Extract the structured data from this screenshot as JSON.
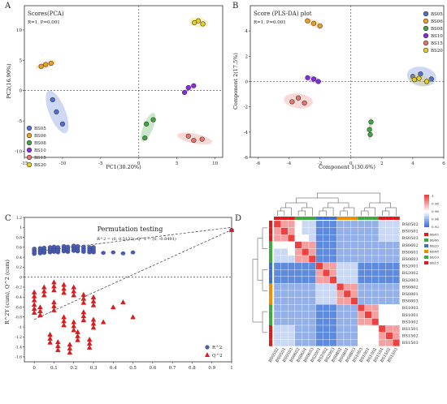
{
  "panels": {
    "A": {
      "letter": "A",
      "title": "Scores(PCA)",
      "stat": "R=1, P=0.001",
      "xlabel": "PC1(30.20%)",
      "ylabel": "PC2(16.90%)"
    },
    "B": {
      "letter": "B",
      "title": "Score (PLS-DA) plot",
      "stat": "R=1, P=0.001",
      "xlabel": "Component 1(30.6%)",
      "ylabel": "Component 2(17.5%)"
    },
    "C": {
      "letter": "C",
      "title": "Permutation testing",
      "stat1": "R^2 = (0, 0.5133), Q^2 = (0, -0.8491)",
      "ylabel": "R^2Y (cum), Q^2 (cum)"
    },
    "D": {
      "letter": "D"
    }
  },
  "colors": {
    "BS05": "#4f6fd6",
    "BS06": "#f0a020",
    "BS08": "#3fa83f",
    "BS10": "#8a2be2",
    "BS15": "#e8736b",
    "BS20": "#e8d020",
    "r2": "#4a5db0",
    "q2": "#e31a1c"
  },
  "chart_data": [
    {
      "panel": "A",
      "type": "scatter",
      "title": "Scores(PCA)",
      "subtitle": "R=1, P=0.001",
      "xlabel": "PC1(30.20%)",
      "ylabel": "PC2(16.90%)",
      "xlim": [
        -15,
        11
      ],
      "ylim": [
        -11,
        14
      ],
      "xticks": [
        -15,
        -10,
        -5,
        0,
        5,
        10
      ],
      "yticks": [
        -10,
        -5,
        0,
        5,
        10
      ],
      "legend": "bottom-left",
      "series": [
        {
          "name": "BS05",
          "points": [
            [
              -11.3,
              -1.5
            ],
            [
              -10.8,
              -3.5
            ],
            [
              -10.0,
              -5.5
            ]
          ]
        },
        {
          "name": "BS06",
          "points": [
            [
              -12.8,
              4.0
            ],
            [
              -12.2,
              4.3
            ],
            [
              -11.5,
              4.5
            ]
          ]
        },
        {
          "name": "BS08",
          "points": [
            [
              0.8,
              -7.8
            ],
            [
              1.0,
              -5.5
            ],
            [
              1.9,
              -4.8
            ]
          ]
        },
        {
          "name": "BS10",
          "points": [
            [
              6.0,
              -0.3
            ],
            [
              6.5,
              0.5
            ],
            [
              7.2,
              0.8
            ]
          ]
        },
        {
          "name": "BS15",
          "points": [
            [
              6.5,
              -7.5
            ],
            [
              7.2,
              -8.2
            ],
            [
              8.3,
              -8.0
            ]
          ]
        },
        {
          "name": "BS20",
          "points": [
            [
              7.3,
              11.2
            ],
            [
              7.8,
              11.5
            ],
            [
              8.4,
              11.0
            ]
          ]
        }
      ]
    },
    {
      "panel": "B",
      "type": "scatter",
      "title": "Score (PLS-DA) plot",
      "subtitle": "R=1, P=0.001",
      "xlabel": "Component 1(30.6%)",
      "ylabel": "Component 2(17.5%)",
      "xlim": [
        -6.5,
        6
      ],
      "ylim": [
        -6,
        6
      ],
      "xticks": [
        -6,
        -4,
        -2,
        0,
        2,
        4,
        6
      ],
      "yticks": [
        -6,
        -4,
        -2,
        0,
        2,
        4
      ],
      "legend": "top-right",
      "series": [
        {
          "name": "BS05",
          "points": [
            [
              4.0,
              0.4
            ],
            [
              4.5,
              0.6
            ],
            [
              5.2,
              0.2
            ]
          ]
        },
        {
          "name": "BS06",
          "points": [
            [
              -2.8,
              4.8
            ],
            [
              -2.4,
              4.6
            ],
            [
              -2.0,
              4.4
            ]
          ]
        },
        {
          "name": "BS08",
          "points": [
            [
              1.2,
              -3.8
            ],
            [
              1.25,
              -4.2
            ],
            [
              1.3,
              -3.2
            ]
          ]
        },
        {
          "name": "BS10",
          "points": [
            [
              -2.8,
              0.3
            ],
            [
              -2.4,
              0.2
            ],
            [
              -2.1,
              0.0
            ]
          ]
        },
        {
          "name": "BS15",
          "points": [
            [
              -3.8,
              -1.6
            ],
            [
              -3.4,
              -1.3
            ],
            [
              -3.0,
              -1.7
            ]
          ]
        },
        {
          "name": "BS20",
          "points": [
            [
              4.1,
              0.15
            ],
            [
              4.4,
              0.25
            ],
            [
              4.9,
              0.0
            ]
          ]
        }
      ]
    },
    {
      "panel": "C",
      "type": "scatter",
      "title": "Permutation testing",
      "annotation": "R^2 = (0, 0.5133), Q^2 = (0, -0.8491)",
      "ylabel": "R^2Y (cum), Q^2 (cum)",
      "xlim": [
        -0.05,
        1.0
      ],
      "ylim": [
        -1.7,
        1.2
      ],
      "xticks": [
        0,
        0.1,
        0.2,
        0.3,
        0.4,
        0.5,
        0.6,
        0.7,
        0.8,
        0.9,
        1
      ],
      "yticks": [
        -1.6,
        -1.4,
        -1.2,
        -1,
        -0.8,
        -0.6,
        -0.4,
        -0.2,
        0,
        0.2,
        0.4,
        0.6,
        0.8,
        1,
        1.2
      ],
      "legend": "bottom-right",
      "series": [
        {
          "name": "R^2",
          "x_values": [
            0,
            0.03,
            0.05,
            0.08,
            0.1,
            0.12,
            0.15,
            0.17,
            0.2,
            0.22,
            0.25,
            0.28,
            0.3,
            0.35,
            0.4,
            0.45,
            0.5,
            1
          ],
          "y_values": [
            0.52,
            0.53,
            0.54,
            0.55,
            0.56,
            0.55,
            0.57,
            0.56,
            0.58,
            0.57,
            0.56,
            0.55,
            0.55,
            0.54,
            0.55,
            0.53,
            0.55,
            1.0
          ]
        },
        {
          "name": "Q^2",
          "x_values": [
            0,
            0,
            0.03,
            0.05,
            0.08,
            0.1,
            0.1,
            0.12,
            0.15,
            0.15,
            0.18,
            0.2,
            0.2,
            0.22,
            0.25,
            0.25,
            0.28,
            0.3,
            0.3,
            0.35,
            0.4,
            0.45,
            0.5,
            1
          ],
          "y_values": [
            -0.3,
            -0.55,
            -0.6,
            -0.2,
            -1.15,
            -0.1,
            -0.5,
            -1.3,
            -0.15,
            -0.8,
            -1.35,
            -0.2,
            -0.9,
            -1.1,
            -0.35,
            -0.7,
            -1.25,
            -0.4,
            -0.85,
            -0.9,
            -0.6,
            -0.5,
            -0.8,
            0.95
          ]
        }
      ]
    },
    {
      "panel": "D",
      "type": "heatmap",
      "legend_ticks": [
        "1",
        "0.98",
        "0.96",
        "0.94",
        "0.92"
      ],
      "groups": [
        "BS05",
        "BS06",
        "BS20",
        "BS08",
        "BS10",
        "BS15"
      ],
      "rows": [
        "BS0502",
        "BS0501",
        "BS0503",
        "BS0602",
        "BS0601",
        "BS0603",
        "BS2001",
        "BS2002",
        "BS2003",
        "BS0802",
        "BS0801",
        "BS0803",
        "BS1003",
        "BS1001",
        "BS1002",
        "BS1501",
        "BS1502",
        "BS1503"
      ],
      "cols": [
        "BS0502",
        "BS0501",
        "BS0503",
        "BS0602",
        "BS0601",
        "BS0603",
        "BS2001",
        "BS2002",
        "BS2003",
        "BS0802",
        "BS0801",
        "BS0803",
        "BS1003",
        "BS1001",
        "BS1002",
        "BS1501",
        "BS1502",
        "BS1503"
      ],
      "values": [
        [
          1.0,
          0.98,
          0.98,
          0.96,
          0.95,
          0.95,
          0.93,
          0.93,
          0.93,
          0.94,
          0.94,
          0.94,
          0.94,
          0.94,
          0.94,
          0.95,
          0.95,
          0.95
        ],
        [
          0.98,
          1.0,
          0.98,
          0.96,
          0.95,
          0.95,
          0.93,
          0.93,
          0.93,
          0.94,
          0.94,
          0.94,
          0.94,
          0.94,
          0.94,
          0.95,
          0.95,
          0.95
        ],
        [
          0.98,
          0.98,
          1.0,
          0.96,
          0.96,
          0.95,
          0.93,
          0.93,
          0.93,
          0.94,
          0.94,
          0.94,
          0.94,
          0.94,
          0.94,
          0.95,
          0.95,
          0.95
        ],
        [
          0.96,
          0.96,
          0.96,
          1.0,
          0.98,
          0.98,
          0.93,
          0.93,
          0.93,
          0.94,
          0.94,
          0.94,
          0.94,
          0.94,
          0.94,
          0.94,
          0.94,
          0.94
        ],
        [
          0.95,
          0.95,
          0.96,
          0.98,
          1.0,
          0.98,
          0.93,
          0.93,
          0.93,
          0.94,
          0.94,
          0.94,
          0.94,
          0.94,
          0.94,
          0.94,
          0.94,
          0.94
        ],
        [
          0.95,
          0.95,
          0.95,
          0.98,
          0.98,
          1.0,
          0.93,
          0.93,
          0.93,
          0.94,
          0.94,
          0.94,
          0.94,
          0.94,
          0.94,
          0.94,
          0.94,
          0.94
        ],
        [
          0.93,
          0.93,
          0.93,
          0.93,
          0.93,
          0.93,
          1.0,
          0.98,
          0.98,
          0.95,
          0.95,
          0.95,
          0.93,
          0.93,
          0.93,
          0.93,
          0.93,
          0.93
        ],
        [
          0.93,
          0.93,
          0.93,
          0.93,
          0.93,
          0.93,
          0.98,
          1.0,
          0.98,
          0.95,
          0.95,
          0.95,
          0.93,
          0.93,
          0.93,
          0.93,
          0.93,
          0.93
        ],
        [
          0.93,
          0.93,
          0.93,
          0.93,
          0.93,
          0.93,
          0.98,
          0.98,
          1.0,
          0.95,
          0.95,
          0.95,
          0.93,
          0.93,
          0.93,
          0.93,
          0.93,
          0.93
        ],
        [
          0.94,
          0.94,
          0.94,
          0.94,
          0.94,
          0.94,
          0.95,
          0.95,
          0.95,
          1.0,
          0.98,
          0.98,
          0.94,
          0.94,
          0.94,
          0.94,
          0.94,
          0.94
        ],
        [
          0.94,
          0.94,
          0.94,
          0.94,
          0.94,
          0.94,
          0.95,
          0.95,
          0.95,
          0.98,
          1.0,
          0.98,
          0.94,
          0.94,
          0.94,
          0.94,
          0.94,
          0.94
        ],
        [
          0.94,
          0.94,
          0.94,
          0.94,
          0.94,
          0.94,
          0.95,
          0.95,
          0.95,
          0.98,
          0.98,
          1.0,
          0.94,
          0.94,
          0.94,
          0.94,
          0.94,
          0.94
        ],
        [
          0.94,
          0.94,
          0.94,
          0.94,
          0.94,
          0.94,
          0.93,
          0.93,
          0.93,
          0.94,
          0.94,
          0.94,
          1.0,
          0.98,
          0.98,
          0.96,
          0.96,
          0.96
        ],
        [
          0.94,
          0.94,
          0.94,
          0.94,
          0.94,
          0.94,
          0.93,
          0.93,
          0.93,
          0.94,
          0.94,
          0.94,
          0.98,
          1.0,
          0.98,
          0.96,
          0.96,
          0.96
        ],
        [
          0.94,
          0.94,
          0.94,
          0.94,
          0.94,
          0.94,
          0.93,
          0.93,
          0.93,
          0.94,
          0.94,
          0.94,
          0.98,
          0.98,
          1.0,
          0.96,
          0.96,
          0.96
        ],
        [
          0.95,
          0.95,
          0.95,
          0.94,
          0.94,
          0.94,
          0.93,
          0.93,
          0.93,
          0.94,
          0.94,
          0.94,
          0.96,
          0.96,
          0.96,
          1.0,
          0.98,
          0.98
        ],
        [
          0.95,
          0.95,
          0.95,
          0.94,
          0.94,
          0.94,
          0.93,
          0.93,
          0.93,
          0.94,
          0.94,
          0.94,
          0.96,
          0.96,
          0.96,
          0.98,
          1.0,
          0.98
        ],
        [
          0.95,
          0.95,
          0.95,
          0.94,
          0.94,
          0.94,
          0.93,
          0.93,
          0.93,
          0.94,
          0.94,
          0.94,
          0.96,
          0.96,
          0.96,
          0.98,
          0.98,
          1.0
        ]
      ]
    }
  ]
}
